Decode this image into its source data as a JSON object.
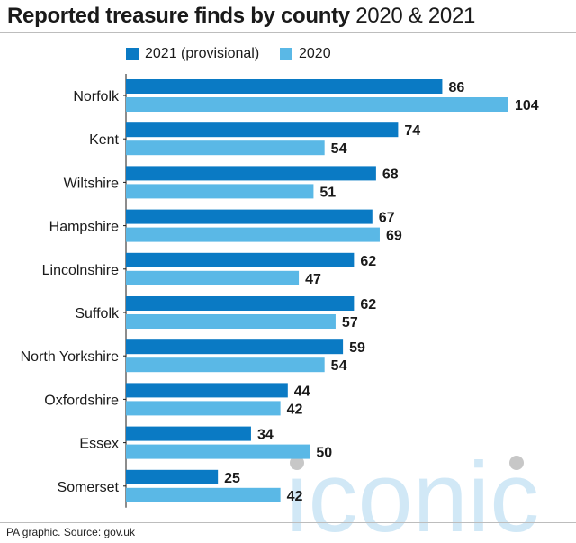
{
  "header": {
    "title_bold": "Reported treasure finds by county",
    "title_light": "2020 & 2021"
  },
  "footer": {
    "source": "PA graphic. Source: gov.uk"
  },
  "watermark": {
    "text": "iconic",
    "color": "#c9e4f5"
  },
  "colors": {
    "series_2021": "#0a7ac4",
    "series_2020": "#5ab8e6",
    "text": "#1a1a1a"
  },
  "chart_data": {
    "type": "bar",
    "orientation": "horizontal",
    "title": "Reported treasure finds by county 2020 & 2021",
    "categories": [
      "Norfolk",
      "Kent",
      "Wiltshire",
      "Hampshire",
      "Lincolnshire",
      "Suffolk",
      "North Yorkshire",
      "Oxfordshire",
      "Essex",
      "Somerset"
    ],
    "series": [
      {
        "name": "2021 (provisional)",
        "color": "#0a7ac4",
        "values": [
          86,
          74,
          68,
          67,
          62,
          62,
          59,
          44,
          34,
          25
        ]
      },
      {
        "name": "2020",
        "color": "#5ab8e6",
        "values": [
          104,
          54,
          51,
          69,
          47,
          57,
          54,
          42,
          50,
          42
        ]
      }
    ],
    "legend_position": "top",
    "grid": false,
    "data_labels": true,
    "xlim": [
      0,
      104
    ]
  }
}
